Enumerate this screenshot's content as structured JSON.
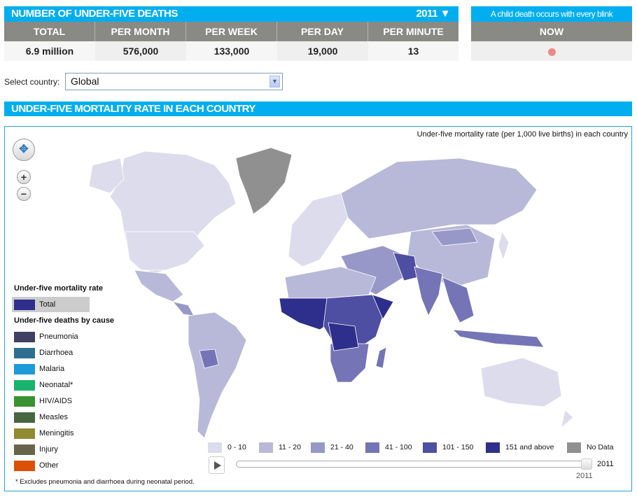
{
  "deaths": {
    "title": "NUMBER OF UNDER-FIVE DEATHS",
    "year": "2011 ▼",
    "columns": [
      "TOTAL",
      "PER MONTH",
      "PER WEEK",
      "PER DAY",
      "PER MINUTE"
    ],
    "values": [
      "6.9 million",
      "576,000",
      "133,000",
      "19,000",
      "13"
    ]
  },
  "blink": {
    "title": "A child death occurs with every blink",
    "header": "NOW"
  },
  "select": {
    "label": "Select country:",
    "value": "Global"
  },
  "rate": {
    "title": "UNDER-FIVE MORTALITY RATE IN EACH COUNTRY",
    "subtitle": "Under-five mortality rate (per 1,000 live births) in each country"
  },
  "legend": {
    "rate_heading": "Under-five mortality rate",
    "total": {
      "label": "Total",
      "color": "#2e2e8c"
    },
    "cause_heading": "Under-five deaths by cause",
    "causes": [
      {
        "label": "Pneumonia",
        "color": "#404065"
      },
      {
        "label": "Diarrhoea",
        "color": "#2e6e90"
      },
      {
        "label": "Malaria",
        "color": "#1e9ad8"
      },
      {
        "label": "Neonatal*",
        "color": "#1ab26c"
      },
      {
        "label": "HIV/AIDS",
        "color": "#3a9130"
      },
      {
        "label": "Measles",
        "color": "#466642"
      },
      {
        "label": "Meningitis",
        "color": "#908a32"
      },
      {
        "label": "Injury",
        "color": "#67644a"
      },
      {
        "label": "Other",
        "color": "#db5206"
      }
    ],
    "footnote": "* Excludes pneumonia and diarrhoea during neonatal period."
  },
  "scale": [
    {
      "label": "0 - 10",
      "color": "#dcdcec"
    },
    {
      "label": "11 - 20",
      "color": "#b8b8d9"
    },
    {
      "label": "21 - 40",
      "color": "#9898c8"
    },
    {
      "label": "41 - 100",
      "color": "#7474b6"
    },
    {
      "label": "101 - 150",
      "color": "#4e4ea2"
    },
    {
      "label": "151 and above",
      "color": "#2e2e8c"
    },
    {
      "label": "No Data",
      "color": "#909090"
    }
  ],
  "slider": {
    "year": "2011",
    "value_fraction": 1.0
  }
}
